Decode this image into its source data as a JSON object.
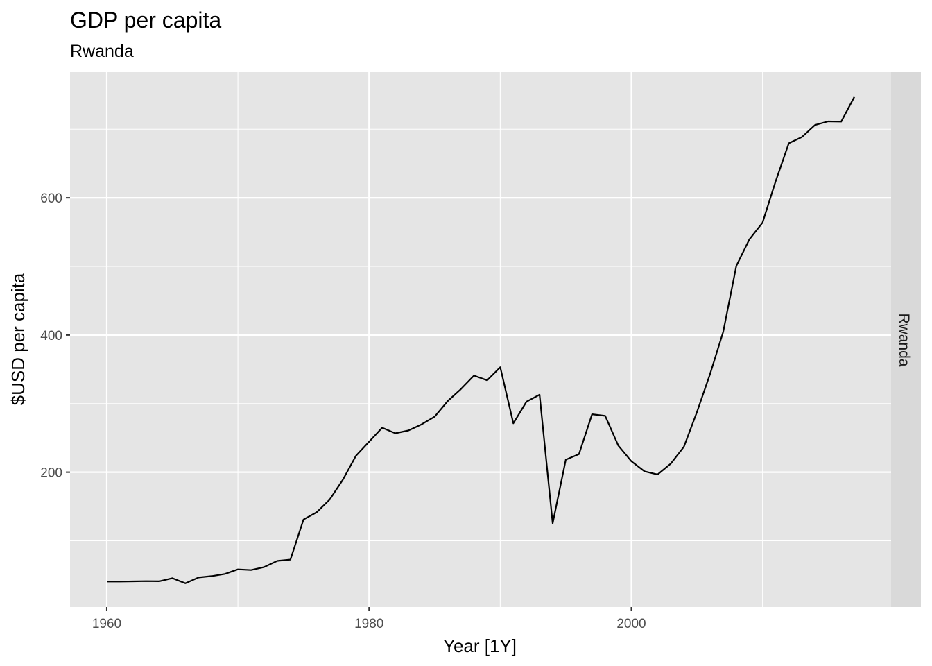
{
  "chart_data": {
    "type": "line",
    "title": "GDP per capita",
    "subtitle": "Rwanda",
    "xlabel": "Year [1Y]",
    "ylabel": "$USD per capita",
    "facet_label": "Rwanda",
    "xlim": [
      1957.2,
      2019.8
    ],
    "ylim": [
      3.4,
      783.2
    ],
    "x_ticks": [
      1960,
      1980,
      2000
    ],
    "x_minor_ticks": [
      1970,
      1990,
      2010
    ],
    "y_ticks": [
      200,
      400,
      600
    ],
    "y_minor_ticks": [
      100,
      300,
      500,
      700
    ],
    "grid": true,
    "line_color": "#000000",
    "panel_color": "#e5e5e5",
    "strip_color": "#d9d9d9",
    "series": [
      {
        "x": [
          1960,
          1961,
          1962,
          1963,
          1964,
          1965,
          1966,
          1967,
          1968,
          1969,
          1970,
          1971,
          1972,
          1973,
          1974,
          1975,
          1976,
          1977,
          1978,
          1979,
          1980,
          1981,
          1982,
          1983,
          1984,
          1985,
          1986,
          1987,
          1988,
          1989,
          1990,
          1991,
          1992,
          1993,
          1994,
          1995,
          1996,
          1997,
          1998,
          1999,
          2000,
          2001,
          2002,
          2003,
          2004,
          2005,
          2006,
          2007,
          2008,
          2009,
          2010,
          2011,
          2012,
          2013,
          2014,
          2015,
          2016,
          2017
        ],
        "values": [
          40.5,
          40.5,
          40.8,
          41.1,
          40.9,
          45.5,
          38.0,
          46.5,
          48.5,
          51.6,
          58.3,
          57.3,
          61.7,
          70.7,
          72.6,
          131.0,
          141.6,
          160.2,
          189.0,
          223.9,
          244.3,
          264.9,
          256.8,
          260.8,
          269.7,
          280.9,
          303.8,
          321.1,
          340.8,
          333.9,
          353.0,
          271.2,
          302.8,
          313.0,
          125.4,
          218.2,
          226.3,
          284.5,
          282.1,
          238.9,
          215.9,
          201.2,
          196.7,
          212.4,
          237.0,
          287.9,
          343.2,
          404.6,
          500.7,
          539.6,
          563.7,
          624.3,
          679.5,
          688.6,
          706.1,
          711.4,
          711.1,
          747.1
        ]
      }
    ]
  }
}
